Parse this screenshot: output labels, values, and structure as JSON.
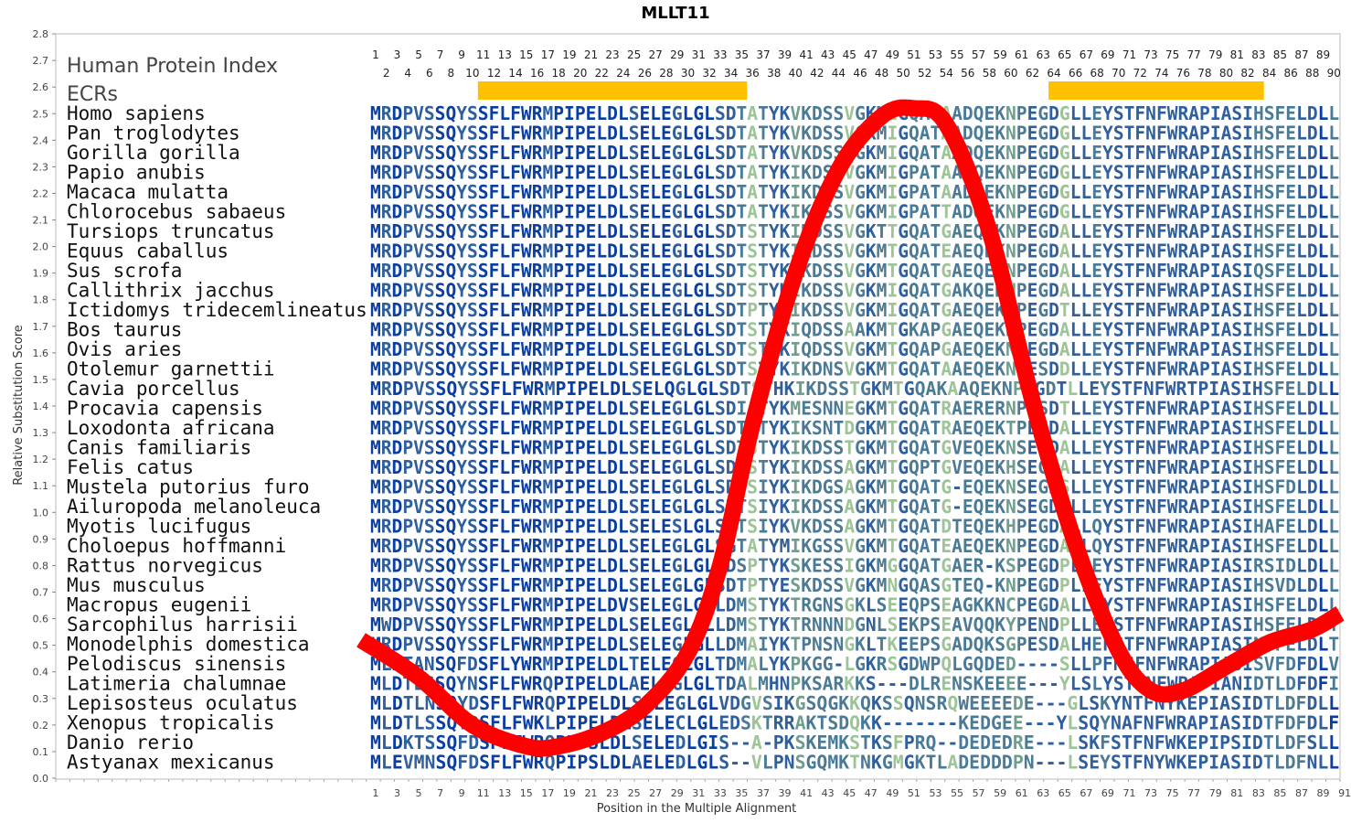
{
  "chart_data": {
    "type": "line",
    "title": "MLLT11",
    "xlabel": "Position in the Multiple Alignment",
    "ylabel": "Relative Substitution Score",
    "ylim": [
      0.0,
      2.8
    ],
    "xlim": [
      1,
      91
    ],
    "yticks": [
      "0.0",
      "0.1",
      "0.2",
      "0.3",
      "0.4",
      "0.5",
      "0.6",
      "0.7",
      "0.8",
      "0.9",
      "1.0",
      "1.1",
      "1.2",
      "1.3",
      "1.4",
      "1.5",
      "1.6",
      "1.7",
      "1.8",
      "1.9",
      "2.0",
      "2.1",
      "2.2",
      "2.3",
      "2.4",
      "2.5",
      "2.6",
      "2.7",
      "2.8"
    ],
    "bottom_ticks": [
      "1",
      "3",
      "5",
      "7",
      "9",
      "11",
      "13",
      "15",
      "17",
      "19",
      "21",
      "23",
      "25",
      "27",
      "29",
      "31",
      "33",
      "35",
      "37",
      "39",
      "41",
      "43",
      "45",
      "47",
      "49",
      "51",
      "53",
      "55",
      "57",
      "59",
      "61",
      "63",
      "65",
      "67",
      "69",
      "71",
      "73",
      "75",
      "77",
      "79",
      "81",
      "83",
      "85",
      "87",
      "89",
      "91"
    ],
    "top_ticks_odd": [
      "1",
      "3",
      "5",
      "7",
      "9",
      "11",
      "13",
      "15",
      "17",
      "19",
      "21",
      "23",
      "25",
      "27",
      "29",
      "31",
      "33",
      "35",
      "37",
      "39",
      "41",
      "43",
      "45",
      "47",
      "49",
      "51",
      "53",
      "55",
      "57",
      "59",
      "61",
      "63",
      "65",
      "67",
      "69",
      "71",
      "73",
      "75",
      "77",
      "79",
      "81",
      "83",
      "85",
      "87",
      "89"
    ],
    "top_ticks_even": [
      "2",
      "4",
      "6",
      "8",
      "10",
      "12",
      "14",
      "16",
      "18",
      "20",
      "22",
      "24",
      "26",
      "28",
      "30",
      "32",
      "34",
      "36",
      "38",
      "40",
      "42",
      "44",
      "46",
      "48",
      "50",
      "52",
      "54",
      "56",
      "58",
      "60",
      "62",
      "64",
      "66",
      "68",
      "70",
      "72",
      "74",
      "76",
      "78",
      "80",
      "82",
      "84",
      "86",
      "88",
      "90"
    ],
    "series": [
      {
        "color": "#ff0000",
        "x": [
          0,
          5,
          10,
          15,
          18,
          22,
          26,
          30,
          33,
          36,
          40,
          44,
          48,
          51,
          54,
          58,
          62,
          66,
          70,
          73,
          76,
          80,
          84,
          88,
          91
        ],
        "y": [
          0.52,
          0.38,
          0.2,
          0.12,
          0.12,
          0.17,
          0.27,
          0.47,
          0.8,
          1.33,
          1.9,
          2.29,
          2.49,
          2.52,
          2.46,
          2.06,
          1.42,
          0.88,
          0.48,
          0.33,
          0.33,
          0.42,
          0.51,
          0.56,
          0.62
        ]
      }
    ],
    "ecr_regions": [
      [
        11,
        35
      ],
      [
        64,
        83
      ]
    ],
    "ecr_color": "#ffc000",
    "legend": {
      "human_protein_index": "Human Protein Index",
      "ecrs": "ECRs"
    },
    "conservation_palette": [
      "#0a3ea0",
      "#2f5f9c",
      "#4a7a96",
      "#6f9d8e",
      "#9cc497"
    ],
    "alignment": [
      {
        "species": "Homo sapiens",
        "seq": "MRDPVSSQYSSFLFWRMPIPELDLSELEGLGLSDTATYKVKDSSVGKMIGQATAADQEKNPEGDGLLEYSTFNFWRAPIASIHSFELDLL"
      },
      {
        "species": "Pan troglodytes",
        "seq": "MRDPVSSQYSSFLFWRMPIPELDLSELEGLGLSDTATYKVKDSSVGKMIGQATAADQEKNPEGDGLLEYSTFNFWRAPIASIHSFELDLL"
      },
      {
        "species": "Gorilla gorilla",
        "seq": "MRDPVSSQYSSFLFWRMPIPELDLSELEGLGLSDTATYKVKDSSVGKMIGQATAADQEKNPEGDGLLEYSTFNFWRAPIASIHSFELDLL"
      },
      {
        "species": "Papio anubis",
        "seq": "MRDPVSSQYSSFLFWRMPIPELDLSELEGLGLSDTATYKIKDSSVGKMIGPATAADQEKNPEGDGLLEYSTFNFWRAPIASIHSFELDLL"
      },
      {
        "species": "Macaca mulatta",
        "seq": "MRDPVSSQYSSFLFWRMPIPELDLSELEGLGLSDTATYKIKDSSVGKMIGPATAADQEKNPEGDGLLEYSTFNFWRAPIASIHSFELDLL"
      },
      {
        "species": "Chlorocebus sabaeus",
        "seq": "MRDPVSSQYSSFLFWRMPIPELDLSELEGLGLSDTATYKIKDSSVGKMIGPATTADQEKNPEGDGLLEYSTFNFWRAPIASIHSFELDLL"
      },
      {
        "species": "Tursiops truncatus",
        "seq": "MRDPVSSQYSSFLFWRMPIPELDLSELEGLGLSDTSTYKIKDSSVGKTTGQATGAEQEKNPEGDALLEYSTFNFWRAPIASIHSFELDLL"
      },
      {
        "species": "Equus caballus",
        "seq": "MRDPVSSQYSSFLFWRMPIPELDLSELEGLGLSDTSTYKIKDSSVGKMTGQATEAEQEKNPEGDALLEYSTFNFWRAPIASIHSFELDLL"
      },
      {
        "species": "Sus scrofa",
        "seq": "MRDPVSSQYSSFLFWRMPIPELDLSELEGLGLSDTSTYKIKDSSVGKMTGQATGAEQEKNPEGDALLEYSTFNFWRAPIASIQSFELDLL"
      },
      {
        "species": "Callithrix jacchus",
        "seq": "MRDPVSSQYSSFLFWRMPIPELDLSELEGLGLSDTSTYKIKDSSVGKMIGQATGAKQEKNPEGDALLEYSTFNFWRAPIASIHSFELDLL"
      },
      {
        "species": "Ictidomys tridecemlineatus",
        "seq": "MRDPVSSQYSSFLFWRMPIPELDLSELEGLGLSDTPTYKIKDSSVGKMIGQATGAEQEKNPEGDTLLEYSTFNFWRAPIASIHSFELDLL"
      },
      {
        "species": "Bos taurus",
        "seq": "MRDPVSSQYSSFLFWRMPIPELDLSELEGLGLSDTSTYKIQDSSAAKMTGKAPGAEQEKNPEGDALLEYSTFNFWRAPIASIHSFELDLL"
      },
      {
        "species": "Ovis aries",
        "seq": "MRDPVSSQYSSFLFWRMPIPELDLSELEGLGLSDTSTYKIQDSSVGKMTGQAPGAEQEKNPEGDALLEYSTFNFWRAPIASIHSFELDLL"
      },
      {
        "species": "Otolemur garnettii",
        "seq": "MRDPVSSQYSSFLFWRMPIPELDLSELEGLGLSDTSTYKIKDNSVGKMTGQATAAEQEKNEESDDLLEYSTFNFWRAPIASIHSFELDLL"
      },
      {
        "species": "Cavia porcellus",
        "seq": "MRDPVSSQYSSFLFWRMPIPELDLSELQGLGLSDTSTHKIKDSSTGKMTGQAKAAQEKNPEGDTLLEYSTFNFWRTPIASIHSFELDLL"
      },
      {
        "species": "Procavia capensis",
        "seq": "MRDPVSSQYSSFLFWRMPIPELDLSELEGLGLSDIATYKMESNNEGKMTGQATRAERERNPESDTLLEYSTFNFWRAPIASIHSFELDLL"
      },
      {
        "species": "Loxodonta africana",
        "seq": "MRDPVSSQYSSFLFWRMPIPELDLSELEGLGLSDTATYKIKSNTDGKMTGQATRAEQEKTPEGDALLEYSTFNFWRAPIASIHSFELDLL"
      },
      {
        "species": "Canis familiaris",
        "seq": "MRDPVSSQYSSFLFWRMPIPELDLSELEGLGLSDTSTYKIKDSSTGKMTGQATGVEQEKNSEGDALLEYSTFNFWRAPIASIHSFELDLL"
      },
      {
        "species": "Felis catus",
        "seq": "MRDPVSSQYSSFLFWRMPIPELDLSELEGLGLSDTSTYKIKDSSAGKMTGQPTGVEQEKHSEGDALLEYSTFNFWRAPIASIHSFELDLL"
      },
      {
        "species": "Mustela putorius furo",
        "seq": "MRDPVSSQYSSFLFWRMPIPELDLSELEGLGLSDTSIYKIKDGSAGKMTGQATG-EQEKNSEGDSLLEYSTFNFWRAPIASIHSFDLDLL"
      },
      {
        "species": "Ailuropoda melanoleuca",
        "seq": "MRDPVSSQYSSFLFWRMPIPELDLSELEGLGLSDTSIYKIKDSSAGKMTGQATG-EQEKNSEGDALLEYSTFNFWRAPIASIHSFELDLL"
      },
      {
        "species": "Myotis lucifugus",
        "seq": "MRDPVSSQYSSFLFWRMPIPELDLSELESLGLSDTSIYKVKDSSAGKMTGQATDTEQEKHPEGDALLQYSTFNFWRAPIASIHAFELDLL"
      },
      {
        "species": "Choloepus hoffmanni",
        "seq": "MRDPVSSQYSSFLFWRMPIPELDLSELEGLGLSGTATYMIKGSSVGKMTGQATEAEQEKNPEGDALLQYSTFNFWRAPIASIHSFELDLL"
      },
      {
        "species": "Rattus norvegicus",
        "seq": "MRDPVSSQYSSFLFWRMPIPELDLSELEGLGLSDSPTYKSKESSIGKMGGQATGAER-KSPEGDPLLEYSTFNFWRAPIASIRSIDLDLL"
      },
      {
        "species": "Mus musculus",
        "seq": "MRDPVSSQYSSFLFWRMPIPELDLSELEGLGLSDTPTYESKDSSVGKMNGQASGTEQ-KNPEGDPLLEYSTFNFWRAPIASIHSVDLDLL"
      },
      {
        "species": "Macropus eugenii",
        "seq": "MRDPVSSQYSSFLFWRMPIPELDVSELEGLGLLDMSTYKTRGNSGKLSEEQPSEAGKKNCPEGDALLEYSTFNFWRAPIASIHSFELDLL"
      },
      {
        "species": "Sarcophilus harrisii",
        "seq": "MWDPVSSQYSSFLFWRMPIPELDLSELEGLGLLDMSTYKTRNNNDGNLSEKPSEAVQQKYPENDPLLEYSTFNFWRAPIASIHSFELDLT"
      },
      {
        "species": "Monodelphis domestica",
        "seq": "MRDPVSSQYSSFLFWRMPIPELDLSELEGLGLLDMAIYKTPNSNGKLTKEEPSGADQKSGPESDALHEFSTFNFWRAPIASINSFELDLT"
      },
      {
        "species": "Pelodiscus sinensis",
        "seq": "MLDTANSQFDSFLYWRMPIPELDLTELEGLGLTDMALYKPKGG-LGKRSGDWPQLGQDED----SLLPFNSFNFWRAPIASISVFDFDLV"
      },
      {
        "species": "Latimeria chalumnae",
        "seq": "MLDTLSSQYNSFLFWRQPIPELDLAELEGLGLTDALMHNPKSARKKS---DLRENSKEEEE---YLSLYSTFNFWRAPIANIDTLDFDFI"
      },
      {
        "species": "Lepisosteus oculatus",
        "seq": "MLDTLNSQYDSFLFWRQPIPELDLSELEGLGLVDGVSIKGSQGKKQKSSQNSRQWEEEEDE---GLSKYNTFNYKEPIASIDTLDFDLL"
      },
      {
        "species": "Xenopus tropicalis",
        "seq": "MLDTLSSQYDSFLFWKLPIPELDLSELECLGLEDSKTRRAKTSDQKK-------KEDGEE---YLSQYNAFNFWRAPIASIDTFDFDLF"
      },
      {
        "species": "Danio rerio",
        "seq": "MLDKTSSQFDSFLFWRQPIPSLDLSELEDLGIS--A-PKSKEMKSTKSFPRQ--DEDEDRE---LSKFSTFNFWKEPIPSIDTLDFSLL"
      },
      {
        "species": "Astyanax mexicanus",
        "seq": "MLEVMNSQFDSFLFWRQPIPSLDLAELEDLGLS--VLPNSGQMKTNKGMGKTLADEDDDPN---LSEYSTFNYWKEPIASIDTLDFNLL"
      }
    ]
  }
}
